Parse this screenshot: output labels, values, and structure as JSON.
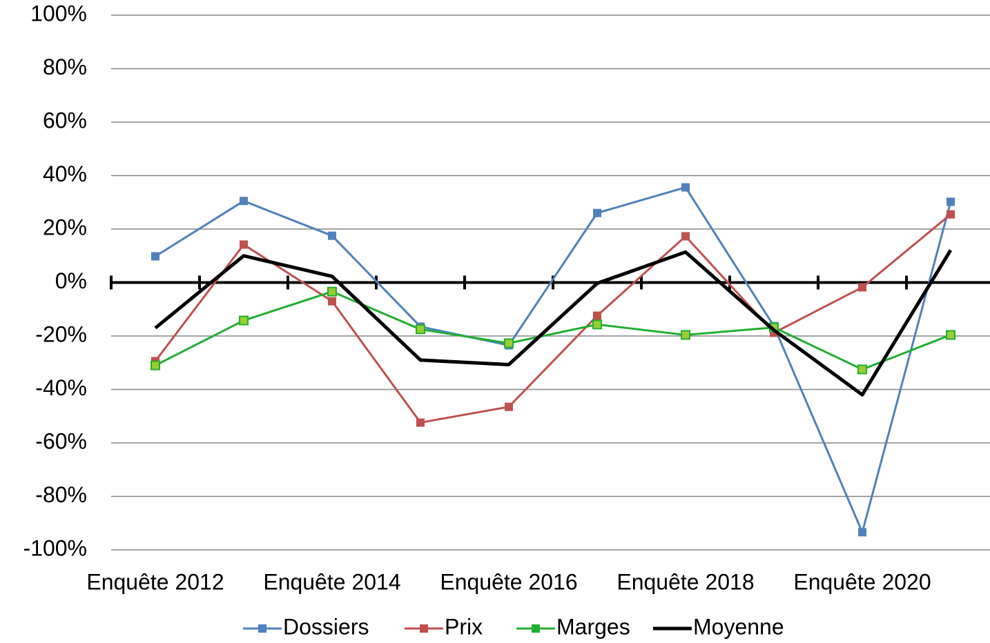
{
  "chart_data": {
    "type": "line",
    "categories": [
      "Enquête 2012",
      null,
      "Enquête 2014",
      null,
      "Enquête 2016",
      null,
      "Enquête 2018",
      null,
      "Enquête 2020",
      null
    ],
    "series": [
      {
        "name": "Dossiers",
        "color": "#4f81bd",
        "marker": "square",
        "values": [
          9.8,
          30.5,
          17.5,
          -16.5,
          -23.5,
          26,
          35.6,
          -16.3,
          -93.4,
          30.2
        ]
      },
      {
        "name": "Prix",
        "color": "#c0504d",
        "marker": "square",
        "values": [
          -29.4,
          14.2,
          -7,
          -52.4,
          -46.5,
          -12.4,
          17.3,
          -18.8,
          -1.8,
          25.5
        ]
      },
      {
        "name": "Marges",
        "color": "#1fb030",
        "marker": "square",
        "values": [
          -31,
          -14.2,
          -3.4,
          -17.5,
          -22.7,
          -15.7,
          -19.6,
          -16.8,
          -32.5,
          -19.6
        ]
      },
      {
        "name": "Moyenne",
        "color": "#000000",
        "marker": "none",
        "values": [
          -17,
          10,
          2.3,
          -29,
          -30.7,
          -0.3,
          11.4,
          -17.8,
          -42,
          12.1
        ]
      }
    ],
    "ylim": [
      -100,
      100
    ],
    "yticks": [
      {
        "value": -100,
        "label": "-100%"
      },
      {
        "value": -80,
        "label": "-80%"
      },
      {
        "value": -60,
        "label": "-60%"
      },
      {
        "value": -40,
        "label": "-40%"
      },
      {
        "value": -20,
        "label": "-20%"
      },
      {
        "value": 0,
        "label": "0%"
      },
      {
        "value": 20,
        "label": "20%"
      },
      {
        "value": 40,
        "label": "40%"
      },
      {
        "value": 60,
        "label": "60%"
      },
      {
        "value": 80,
        "label": "80%"
      },
      {
        "value": 100,
        "label": "100%"
      }
    ],
    "grid": true,
    "legend": "bottom"
  }
}
